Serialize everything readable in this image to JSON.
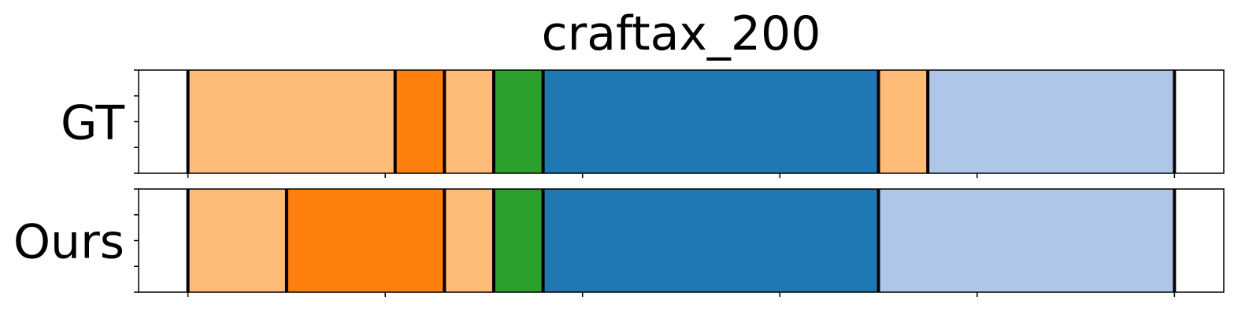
{
  "chart_data": {
    "type": "bar",
    "title": "craftax_200",
    "xlim": [
      0,
      220
    ],
    "grid": false,
    "rows": [
      {
        "label": "GT",
        "boundaries": [
          10,
          52,
          62,
          72,
          82,
          150,
          160,
          210
        ],
        "segment_colors": [
          "#ffbb78",
          "#ff7f0e",
          "#ffbb78",
          "#2ca02c",
          "#1f77b4",
          "#ffbb78",
          "#aec7e8"
        ]
      },
      {
        "label": "Ours",
        "boundaries": [
          10,
          30,
          62,
          72,
          82,
          150,
          210
        ],
        "segment_colors": [
          "#ffbb78",
          "#ff7f0e",
          "#ffbb78",
          "#2ca02c",
          "#1f77b4",
          "#aec7e8"
        ]
      }
    ],
    "x_ticks": [
      10,
      50,
      90,
      130,
      170,
      210
    ],
    "y_ticks_per_row": 5
  }
}
